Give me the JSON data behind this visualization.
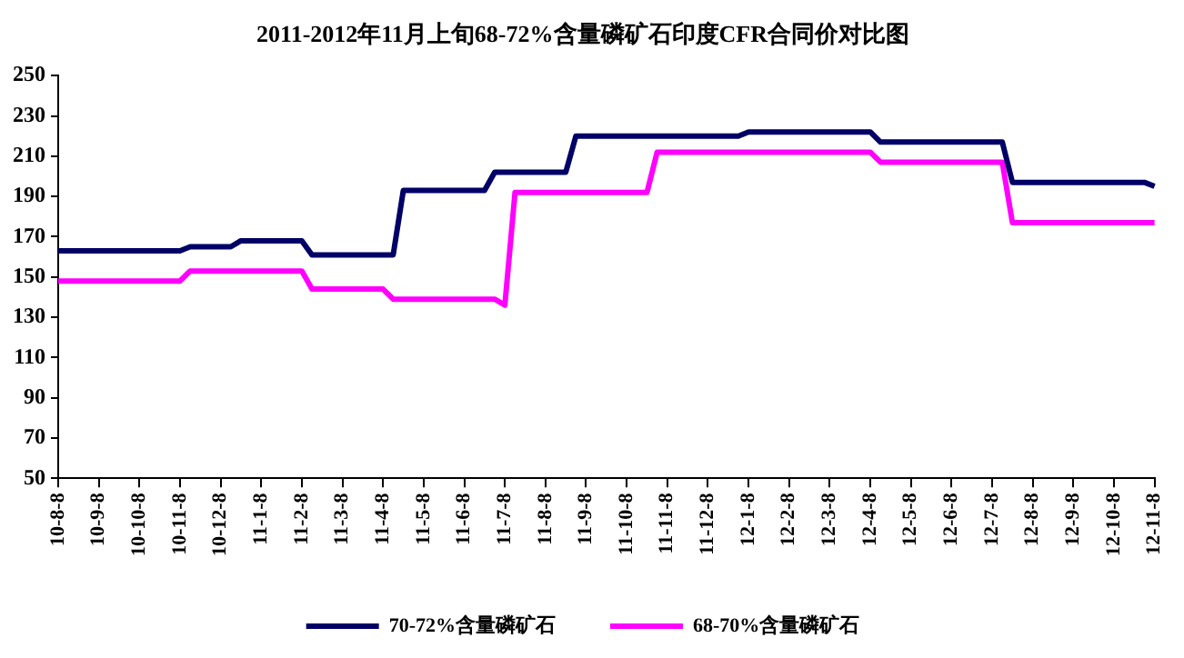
{
  "chart_data": {
    "type": "line",
    "title": "2011-2012年11月上旬68-72%含量磷矿石印度CFR合同价对比图",
    "categories": [
      "10-8-8",
      null,
      null,
      null,
      "10-9-8",
      null,
      null,
      null,
      "10-10-8",
      null,
      null,
      null,
      "10-11-8",
      null,
      null,
      null,
      "10-12-8",
      null,
      null,
      null,
      "11-1-8",
      null,
      null,
      null,
      "11-2-8",
      null,
      null,
      null,
      "11-3-8",
      null,
      null,
      null,
      "11-4-8",
      null,
      null,
      null,
      "11-5-8",
      null,
      null,
      null,
      "11-6-8",
      null,
      null,
      null,
      "11-7-8",
      null,
      null,
      null,
      "11-8-8",
      null,
      null,
      null,
      "11-9-8",
      null,
      null,
      null,
      "11-10-8",
      null,
      null,
      null,
      "11-11-8",
      null,
      null,
      null,
      "11-12-8",
      null,
      null,
      null,
      "12-1-8",
      null,
      null,
      null,
      "12-2-8",
      null,
      null,
      null,
      "12-3-8",
      null,
      null,
      null,
      "12-4-8",
      null,
      null,
      null,
      "12-5-8",
      null,
      null,
      null,
      "12-6-8",
      null,
      null,
      null,
      "12-7-8",
      null,
      null,
      null,
      "12-8-8",
      null,
      null,
      null,
      "12-9-8",
      null,
      null,
      null,
      "12-10-8",
      null,
      null,
      null,
      "12-11-8"
    ],
    "ylim": [
      50,
      250
    ],
    "yticks": [
      50,
      70,
      90,
      110,
      130,
      150,
      170,
      190,
      210,
      230,
      250
    ],
    "series": [
      {
        "name": "70-72%含量磷矿石",
        "color": "#000066",
        "values": [
          163,
          163,
          163,
          163,
          163,
          163,
          163,
          163,
          163,
          163,
          163,
          163,
          163,
          165,
          165,
          165,
          165,
          165,
          168,
          168,
          168,
          168,
          168,
          168,
          168,
          161,
          161,
          161,
          161,
          161,
          161,
          161,
          161,
          161,
          193,
          193,
          193,
          193,
          193,
          193,
          193,
          193,
          193,
          202,
          202,
          202,
          202,
          202,
          202,
          202,
          202,
          220,
          220,
          220,
          220,
          220,
          220,
          220,
          220,
          220,
          220,
          220,
          220,
          220,
          220,
          220,
          220,
          220,
          222,
          222,
          222,
          222,
          222,
          222,
          222,
          222,
          222,
          222,
          222,
          222,
          222,
          217,
          217,
          217,
          217,
          217,
          217,
          217,
          217,
          217,
          217,
          217,
          217,
          217,
          197,
          197,
          197,
          197,
          197,
          197,
          197,
          197,
          197,
          197,
          197,
          197,
          197,
          197,
          195
        ]
      },
      {
        "name": "68-70%含量磷矿石",
        "color": "#ff00ff",
        "values": [
          148,
          148,
          148,
          148,
          148,
          148,
          148,
          148,
          148,
          148,
          148,
          148,
          148,
          153,
          153,
          153,
          153,
          153,
          153,
          153,
          153,
          153,
          153,
          153,
          153,
          144,
          144,
          144,
          144,
          144,
          144,
          144,
          144,
          139,
          139,
          139,
          139,
          139,
          139,
          139,
          139,
          139,
          139,
          139,
          136,
          192,
          192,
          192,
          192,
          192,
          192,
          192,
          192,
          192,
          192,
          192,
          192,
          192,
          192,
          212,
          212,
          212,
          212,
          212,
          212,
          212,
          212,
          212,
          212,
          212,
          212,
          212,
          212,
          212,
          212,
          212,
          212,
          212,
          212,
          212,
          212,
          207,
          207,
          207,
          207,
          207,
          207,
          207,
          207,
          207,
          207,
          207,
          207,
          207,
          177,
          177,
          177,
          177,
          177,
          177,
          177,
          177,
          177,
          177,
          177,
          177,
          177,
          177,
          177
        ]
      }
    ],
    "legend": "bottom",
    "grid": false,
    "marker": "none",
    "line_style": "solid"
  }
}
